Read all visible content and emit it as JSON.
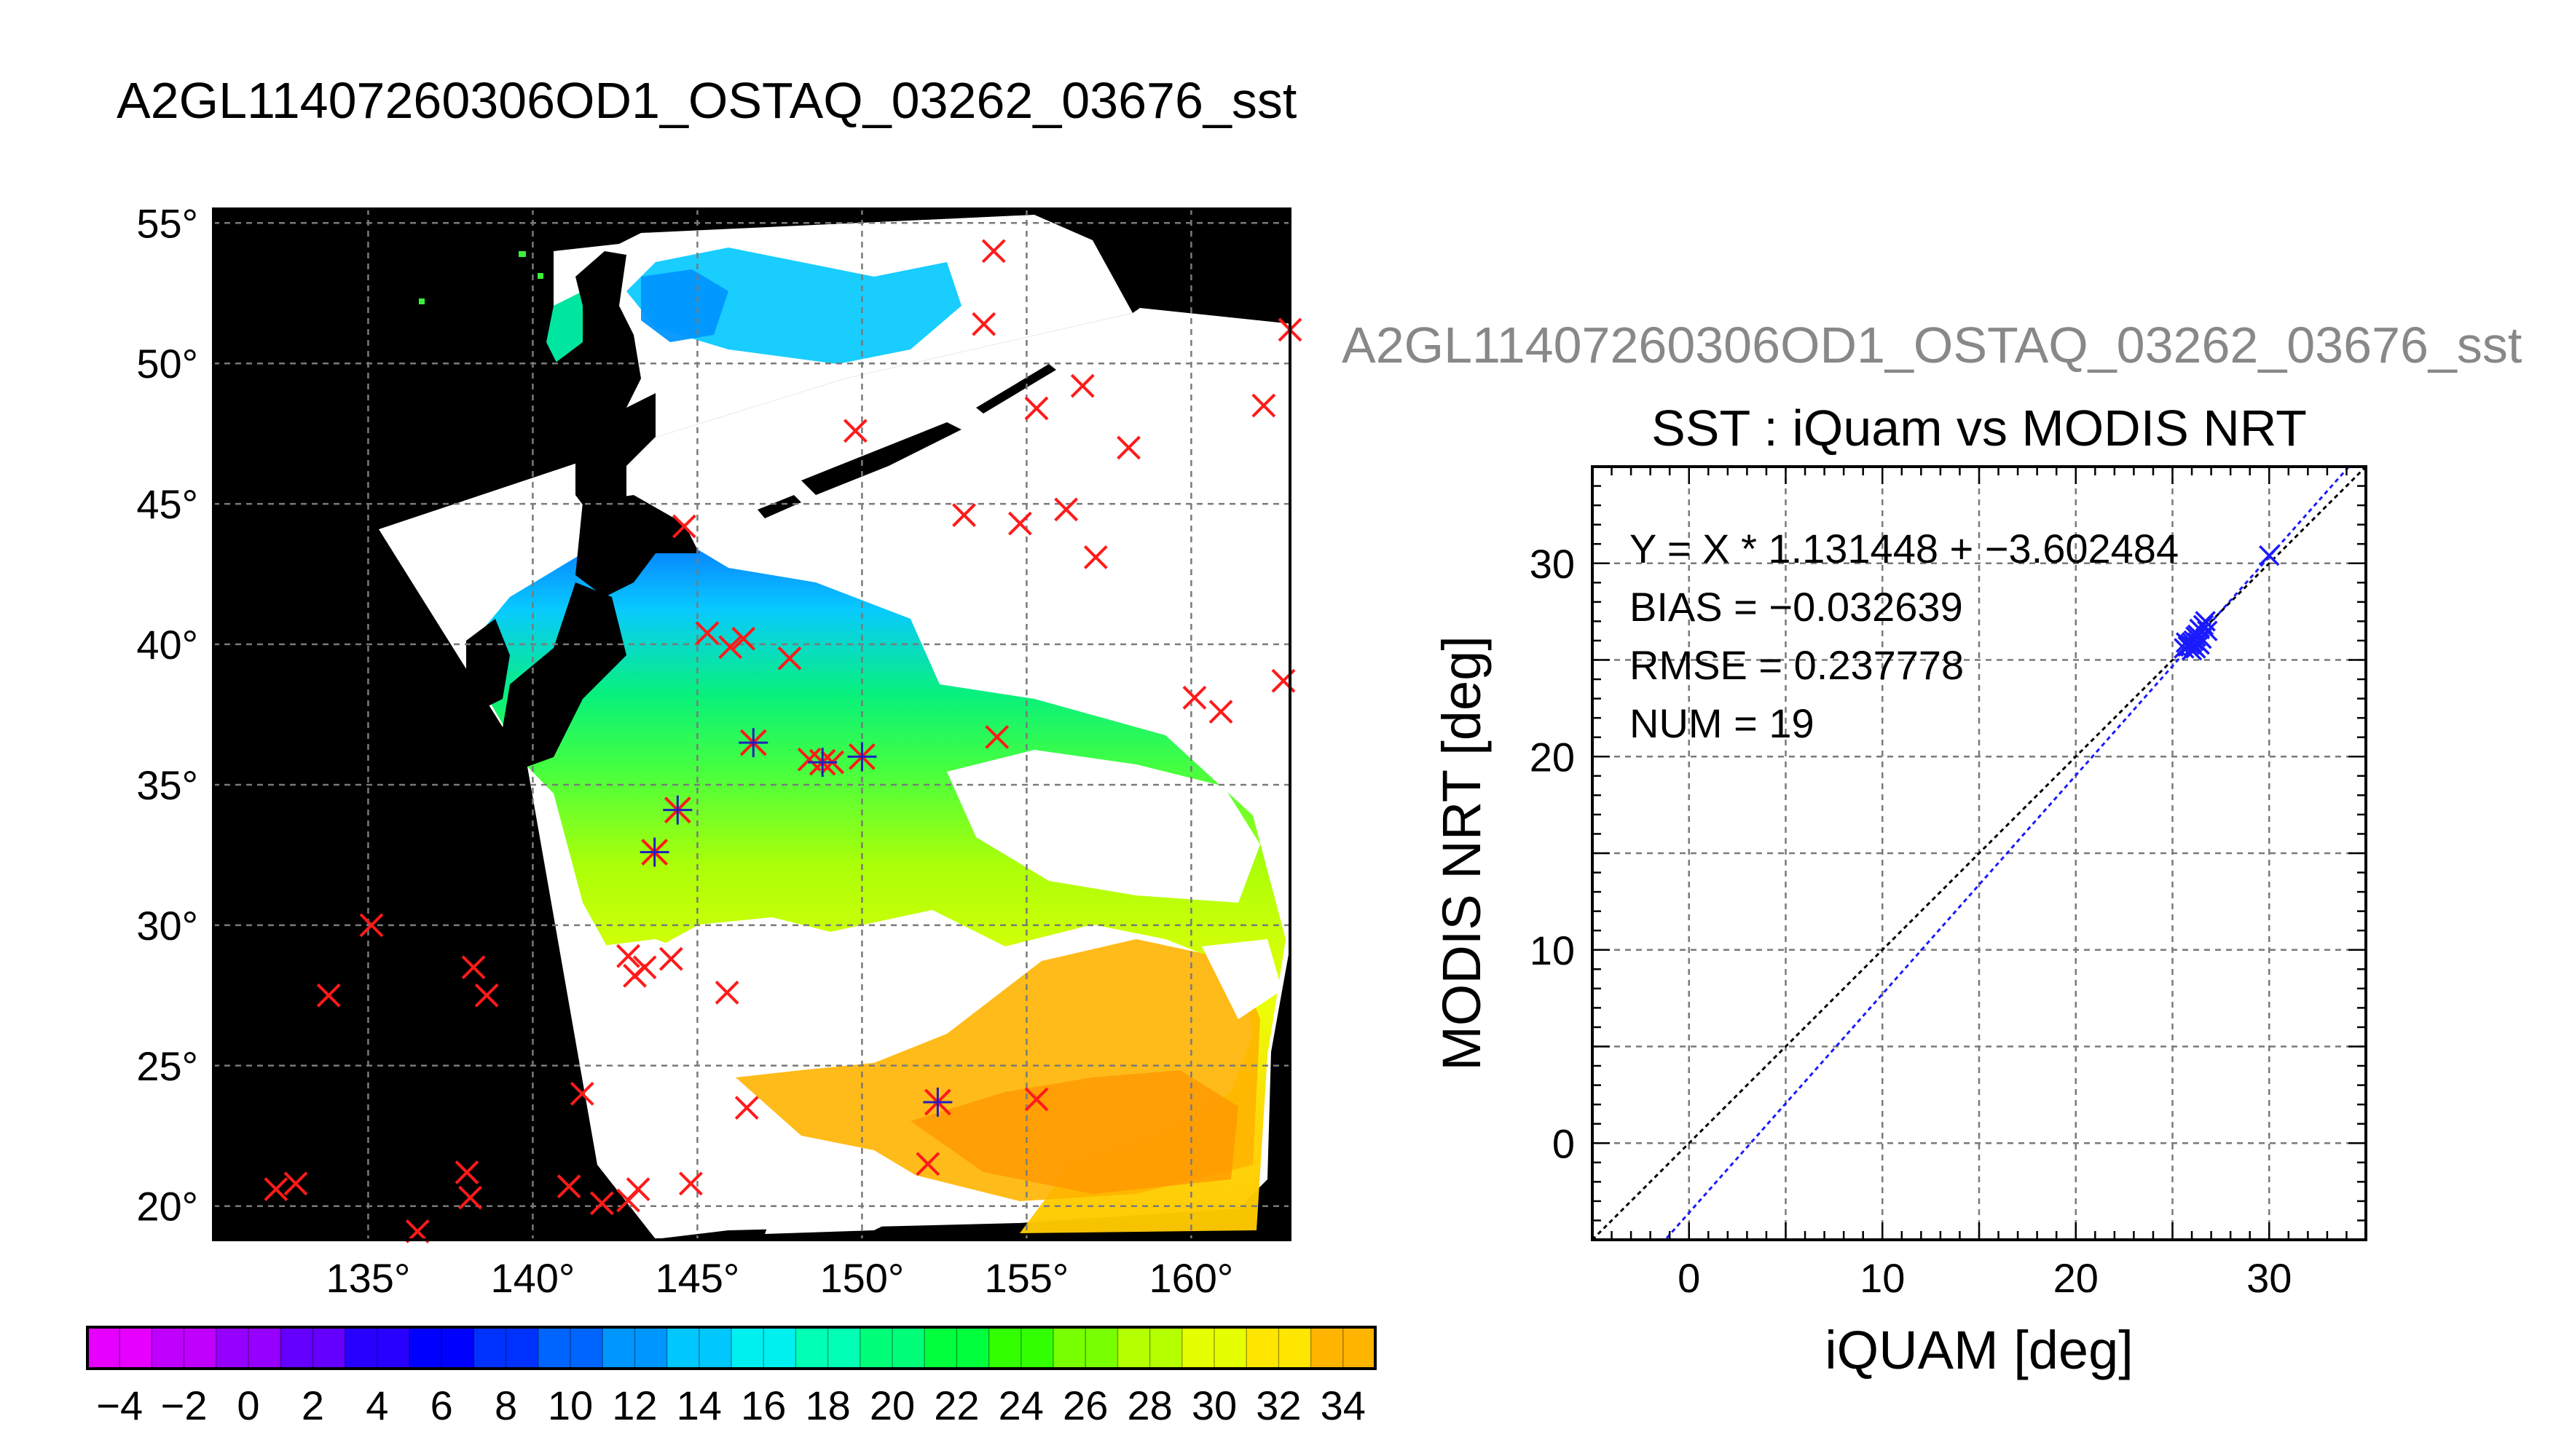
{
  "map": {
    "title": "A2GL11407260306OD1_OSTAQ_03262_03676_sst",
    "lon_ticks": [
      135,
      140,
      145,
      150,
      155,
      160
    ],
    "lat_ticks": [
      20,
      25,
      30,
      35,
      40,
      45,
      50,
      55
    ],
    "deg_symbol": "°",
    "lon_range": [
      130.3,
      163.0
    ],
    "lat_range": [
      18.8,
      55.5
    ],
    "colors": {
      "land": "#000000",
      "cloud": "#ffffff",
      "cross": "#ff1a1a",
      "cross_matched": "#2020c0",
      "grid": "#7a7a7a"
    },
    "crosses_red": [
      [
        154.0,
        54.0
      ],
      [
        153.7,
        51.4
      ],
      [
        163.0,
        51.2
      ],
      [
        162.2,
        48.5
      ],
      [
        156.7,
        49.2
      ],
      [
        155.3,
        48.4
      ],
      [
        158.1,
        47.0
      ],
      [
        149.8,
        47.6
      ],
      [
        153.1,
        44.6
      ],
      [
        154.8,
        44.3
      ],
      [
        156.2,
        44.8
      ],
      [
        157.1,
        43.1
      ],
      [
        144.6,
        44.2
      ],
      [
        145.3,
        40.4
      ],
      [
        146.0,
        39.9
      ],
      [
        146.4,
        40.2
      ],
      [
        147.8,
        39.5
      ],
      [
        160.1,
        38.1
      ],
      [
        160.9,
        37.6
      ],
      [
        162.8,
        38.7
      ],
      [
        154.1,
        36.7
      ],
      [
        148.4,
        35.9
      ],
      [
        149.1,
        35.8
      ],
      [
        135.1,
        30.0
      ],
      [
        138.2,
        28.5
      ],
      [
        138.6,
        27.5
      ],
      [
        133.8,
        27.5
      ],
      [
        142.9,
        28.9
      ],
      [
        143.1,
        28.2
      ],
      [
        143.4,
        28.5
      ],
      [
        144.2,
        28.8
      ],
      [
        145.9,
        27.6
      ],
      [
        146.5,
        23.5
      ],
      [
        155.3,
        23.8
      ],
      [
        141.5,
        24.0
      ],
      [
        152.0,
        21.5
      ],
      [
        144.8,
        20.8
      ],
      [
        141.1,
        20.7
      ],
      [
        142.1,
        20.1
      ],
      [
        142.9,
        20.2
      ],
      [
        143.2,
        20.6
      ],
      [
        138.0,
        21.2
      ],
      [
        138.1,
        20.3
      ],
      [
        132.2,
        20.6
      ],
      [
        132.8,
        20.8
      ],
      [
        136.5,
        19.1
      ]
    ],
    "crosses_matched": [
      [
        146.7,
        36.5
      ],
      [
        150.0,
        36.0
      ],
      [
        144.4,
        34.1
      ],
      [
        143.7,
        32.6
      ],
      [
        152.3,
        23.7
      ],
      [
        148.8,
        35.8
      ]
    ]
  },
  "colorbar": {
    "ticks": [
      -4,
      -2,
      0,
      2,
      4,
      6,
      8,
      10,
      12,
      14,
      16,
      18,
      20,
      22,
      24,
      26,
      28,
      30,
      32,
      34
    ],
    "min": -5,
    "max": 35,
    "step": 2,
    "colors": [
      "#e600ff",
      "#c000ff",
      "#9600ff",
      "#6400ff",
      "#2800ff",
      "#0000ff",
      "#0032ff",
      "#0064ff",
      "#0096ff",
      "#00c8ff",
      "#00f0f0",
      "#00ffb4",
      "#00ff78",
      "#00ff3c",
      "#32ff00",
      "#78ff00",
      "#b4ff00",
      "#e6ff00",
      "#ffe600",
      "#ffb400",
      "#ff7800"
    ]
  },
  "scatter": {
    "file_title": "A2GL11407260306OD1_OSTAQ_03262_03676_sst",
    "chart_data": {
      "type": "scatter",
      "title": "SST : iQuam vs MODIS NRT",
      "xlabel": "iQUAM [deg]",
      "ylabel": "MODIS NRT [deg]",
      "xlim": [
        -5,
        35
      ],
      "ylim": [
        -5,
        35
      ],
      "xticks": [
        0,
        10,
        20,
        30
      ],
      "yticks": [
        0,
        10,
        20,
        30
      ],
      "grid": true,
      "stats": [
        "Y = X * 1.131448 + −3.602484",
        "BIAS = −0.032639",
        "RMSE = 0.237778",
        "NUM = 19"
      ],
      "fit": {
        "slope": 1.131448,
        "intercept": -3.602484
      },
      "points": [
        [
          25.8,
          25.7
        ],
        [
          26.0,
          25.9
        ],
        [
          26.2,
          25.6
        ],
        [
          26.4,
          25.8
        ],
        [
          26.1,
          26.0
        ],
        [
          25.9,
          25.8
        ],
        [
          26.3,
          25.9
        ],
        [
          26.5,
          26.1
        ],
        [
          26.0,
          25.5
        ],
        [
          26.2,
          26.2
        ],
        [
          26.6,
          26.8
        ],
        [
          26.7,
          27.0
        ],
        [
          26.4,
          26.6
        ],
        [
          25.7,
          25.9
        ],
        [
          26.8,
          26.5
        ],
        [
          26.1,
          25.7
        ],
        [
          26.3,
          26.3
        ],
        [
          25.6,
          25.6
        ],
        [
          30.0,
          30.4
        ]
      ],
      "colors": {
        "points": "#1a1aff",
        "fit_line": "#1a1aff",
        "identity_line": "#000000"
      }
    }
  }
}
